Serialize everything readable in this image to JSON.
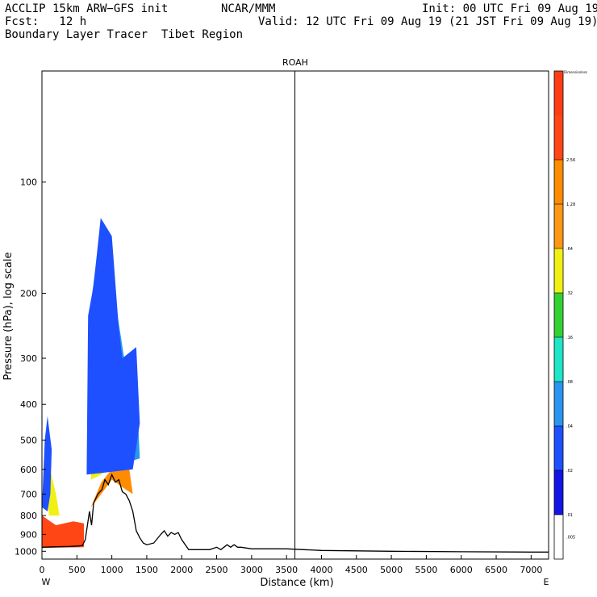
{
  "header": {
    "model": "ACCLIP 15km ARW−GFS init",
    "org": "NCAR/MMM",
    "init": "Init: 00 UTC Fri 09 Aug 19",
    "fcst": "Fcst:   12 h",
    "valid": "Valid: 12 UTC Fri 09 Aug 19 (21 JST Fri 09 Aug 19)",
    "product": "Boundary Layer Tracer  Tibet Region"
  },
  "chart_data": {
    "type": "heatmap",
    "title": "ROAH",
    "xlabel": "Distance (km)",
    "ylabel": "Pressure (hPa), log scale",
    "xlim": [
      0,
      7250
    ],
    "ylim": [
      1050,
      50
    ],
    "x_ticks": [
      "0",
      "500",
      "1000",
      "1500",
      "2000",
      "2500",
      "3000",
      "3500",
      "4000",
      "4500",
      "5000",
      "5500",
      "6000",
      "6500",
      "7000"
    ],
    "y_ticks": [
      "100",
      "200",
      "300",
      "400",
      "500",
      "600",
      "700",
      "800",
      "900",
      "1000"
    ],
    "x_start_label": "W",
    "x_end_label": "E",
    "vertical_line_km": 3620,
    "colorbar": {
      "units_label": "Dimensionless",
      "levels": [
        ".005",
        ".01",
        ".02",
        ".04",
        ".08",
        ".16",
        ".32",
        ".64",
        "1.28",
        "2.56"
      ],
      "colors": [
        "#ffffff",
        "#1414e6",
        "#1e50ff",
        "#2896f0",
        "#1ee6c8",
        "#32d232",
        "#f0f014",
        "#ff9614",
        "#ff8c00",
        "#ff4614"
      ]
    },
    "terrain_profile": [
      {
        "x": 0,
        "p": 975
      },
      {
        "x": 200,
        "p": 972
      },
      {
        "x": 400,
        "p": 970
      },
      {
        "x": 520,
        "p": 968
      },
      {
        "x": 580,
        "p": 965
      },
      {
        "x": 620,
        "p": 930
      },
      {
        "x": 680,
        "p": 780
      },
      {
        "x": 710,
        "p": 850
      },
      {
        "x": 740,
        "p": 740
      },
      {
        "x": 800,
        "p": 700
      },
      {
        "x": 860,
        "p": 680
      },
      {
        "x": 900,
        "p": 640
      },
      {
        "x": 950,
        "p": 660
      },
      {
        "x": 1000,
        "p": 620
      },
      {
        "x": 1050,
        "p": 650
      },
      {
        "x": 1100,
        "p": 640
      },
      {
        "x": 1150,
        "p": 690
      },
      {
        "x": 1200,
        "p": 700
      },
      {
        "x": 1250,
        "p": 730
      },
      {
        "x": 1300,
        "p": 780
      },
      {
        "x": 1350,
        "p": 880
      },
      {
        "x": 1400,
        "p": 920
      },
      {
        "x": 1450,
        "p": 950
      },
      {
        "x": 1500,
        "p": 960
      },
      {
        "x": 1600,
        "p": 950
      },
      {
        "x": 1700,
        "p": 900
      },
      {
        "x": 1750,
        "p": 880
      },
      {
        "x": 1800,
        "p": 910
      },
      {
        "x": 1850,
        "p": 890
      },
      {
        "x": 1900,
        "p": 900
      },
      {
        "x": 1950,
        "p": 890
      },
      {
        "x": 2000,
        "p": 930
      },
      {
        "x": 2100,
        "p": 990
      },
      {
        "x": 2400,
        "p": 990
      },
      {
        "x": 2500,
        "p": 975
      },
      {
        "x": 2560,
        "p": 990
      },
      {
        "x": 2650,
        "p": 960
      },
      {
        "x": 2700,
        "p": 975
      },
      {
        "x": 2750,
        "p": 960
      },
      {
        "x": 2800,
        "p": 975
      },
      {
        "x": 2850,
        "p": 975
      },
      {
        "x": 3000,
        "p": 985
      },
      {
        "x": 3500,
        "p": 985
      },
      {
        "x": 4000,
        "p": 995
      },
      {
        "x": 5000,
        "p": 1000
      },
      {
        "x": 6000,
        "p": 1003
      },
      {
        "x": 7000,
        "p": 1005
      },
      {
        "x": 7250,
        "p": 1005
      }
    ],
    "tracer_plumes": [
      {
        "level": "2.56",
        "points": [
          [
            0,
            980
          ],
          [
            600,
            975
          ],
          [
            600,
            840
          ],
          [
            450,
            830
          ],
          [
            200,
            850
          ],
          [
            80,
            820
          ],
          [
            0,
            800
          ]
        ]
      },
      {
        "level": "1.28",
        "points": [
          [
            700,
            760
          ],
          [
            850,
            650
          ],
          [
            1000,
            600
          ],
          [
            1150,
            570
          ],
          [
            1250,
            600
          ],
          [
            1300,
            700
          ],
          [
            1200,
            680
          ],
          [
            1000,
            640
          ],
          [
            800,
            720
          ]
        ]
      },
      {
        "level": "0.32",
        "points": [
          [
            100,
            800
          ],
          [
            60,
            650
          ],
          [
            100,
            580
          ],
          [
            200,
            700
          ],
          [
            250,
            800
          ]
        ]
      },
      {
        "level": "0.32",
        "points": [
          [
            700,
            640
          ],
          [
            800,
            300
          ],
          [
            900,
            150
          ],
          [
            1000,
            180
          ],
          [
            1050,
            350
          ],
          [
            1100,
            500
          ],
          [
            1250,
            520
          ],
          [
            1300,
            560
          ],
          [
            1150,
            560
          ],
          [
            1000,
            580
          ],
          [
            850,
            620
          ]
        ]
      },
      {
        "level": "0.16",
        "points": [
          [
            720,
            600
          ],
          [
            820,
            260
          ],
          [
            900,
            140
          ],
          [
            980,
            160
          ],
          [
            1050,
            320
          ],
          [
            1150,
            480
          ],
          [
            1300,
            500
          ],
          [
            1330,
            560
          ],
          [
            1200,
            560
          ],
          [
            900,
            600
          ]
        ]
      },
      {
        "level": "0.08",
        "points": [
          [
            700,
            580
          ],
          [
            790,
            240
          ],
          [
            860,
            140
          ],
          [
            1000,
            150
          ],
          [
            1100,
            300
          ],
          [
            1200,
            380
          ],
          [
            1350,
            420
          ],
          [
            1380,
            560
          ],
          [
            1150,
            560
          ]
        ]
      },
      {
        "level": "0.04",
        "points": [
          [
            680,
            560
          ],
          [
            720,
            200
          ],
          [
            800,
            150
          ],
          [
            850,
            130
          ],
          [
            950,
            140
          ],
          [
            1050,
            210
          ],
          [
            1200,
            320
          ],
          [
            1330,
            290
          ],
          [
            1400,
            560
          ],
          [
            1150,
            580
          ]
        ]
      },
      {
        "level": "0.02",
        "points": [
          [
            640,
            620
          ],
          [
            660,
            230
          ],
          [
            740,
            190
          ],
          [
            840,
            125
          ],
          [
            1000,
            140
          ],
          [
            1100,
            250
          ],
          [
            1150,
            300
          ],
          [
            1350,
            280
          ],
          [
            1400,
            450
          ],
          [
            1300,
            600
          ]
        ]
      },
      {
        "level": "0.02",
        "points": [
          [
            0,
            760
          ],
          [
            40,
            500
          ],
          [
            80,
            430
          ],
          [
            140,
            530
          ],
          [
            120,
            700
          ],
          [
            80,
            780
          ]
        ]
      }
    ]
  }
}
